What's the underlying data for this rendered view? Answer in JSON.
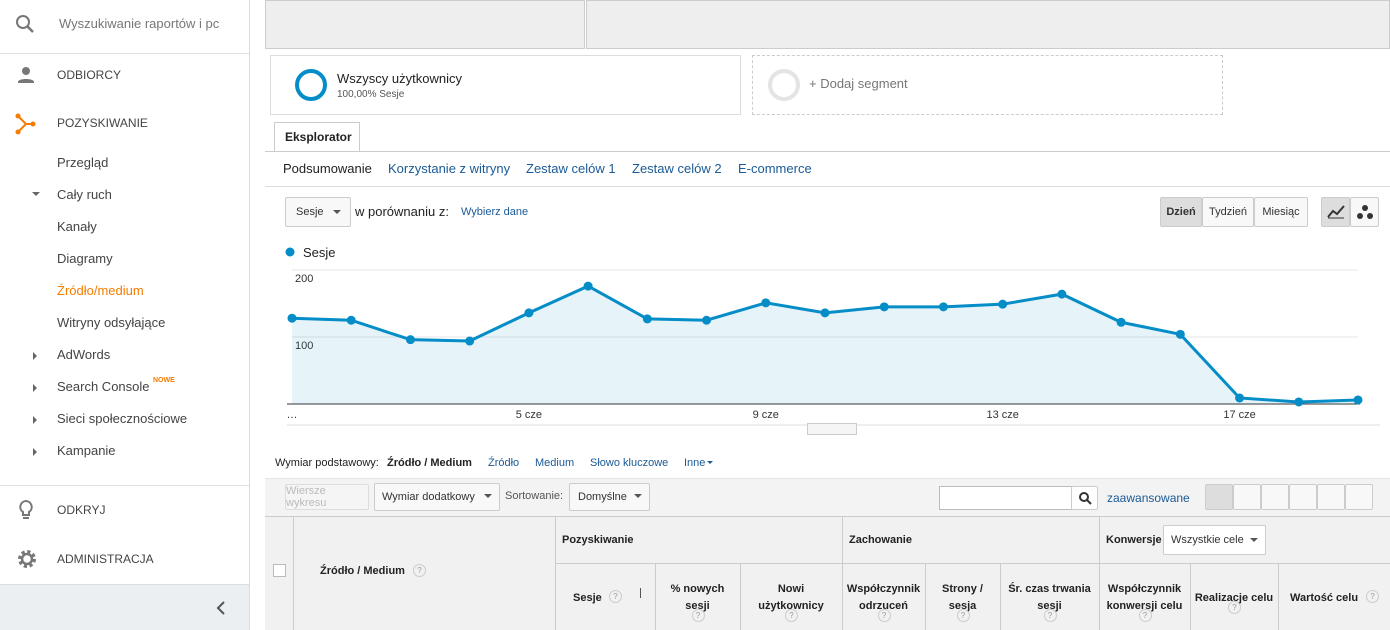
{
  "sidebar": {
    "search": "Wyszukiwanie raportów i pc",
    "audience": "ODBIORCY",
    "acquisition": "POZYSKIWANIE",
    "items": [
      "Przegląd",
      "Cały ruch",
      "Kanały",
      "Diagramy",
      "Źródło/medium",
      "Witryny odsyłające",
      "AdWords",
      "Search Console",
      "Sieci społecznościowe",
      "Kampanie"
    ],
    "badge": "NOWE",
    "discover": "ODKRYJ",
    "admin": "ADMINISTRACJA"
  },
  "segments": {
    "name": "Wszyscy użytkownicy",
    "detail": "100,00% Sesje",
    "add": "+ Dodaj segment"
  },
  "tab": "Eksplorator",
  "subtabs": [
    "Podsumowanie",
    "Korzystanie z witryny",
    "Zestaw celów 1",
    "Zestaw celów 2",
    "E-commerce"
  ],
  "controls": {
    "metric": "Sesje",
    "compare": "w porównaniu z:",
    "choose": "Wybierz dane",
    "periods": [
      "Dzień",
      "Tydzień",
      "Miesiąc"
    ]
  },
  "chart_data": {
    "type": "line",
    "series": [
      {
        "name": "Sesje",
        "color": "#058dc7",
        "values": [
          128,
          125,
          96,
          94,
          136,
          176,
          127,
          125,
          151,
          136,
          145,
          145,
          149,
          164,
          122,
          104,
          9,
          3,
          6
        ]
      }
    ],
    "categories": [
      "…",
      null,
      null,
      null,
      "5 cze",
      null,
      null,
      null,
      "9 cze",
      null,
      null,
      null,
      "13 cze",
      null,
      null,
      null,
      "17 cze",
      null,
      null
    ],
    "ylim": [
      0,
      200
    ],
    "yticks": [
      100,
      200
    ],
    "grid": true,
    "area": true
  },
  "dimension": {
    "label": "Wymiar podstawowy:",
    "options": [
      "Źródło / Medium",
      "Źródło",
      "Medium",
      "Słowo kluczowe",
      "Inne"
    ]
  },
  "toolbar": {
    "plot_rows": "Wiersze wykresu",
    "secondary": "Wymiar dodatkowy",
    "sort_label": "Sortowanie:",
    "sort": "Domyślne",
    "advanced": "zaawansowane"
  },
  "table": {
    "dimension": "Źródło / Medium",
    "help": "?",
    "groups": [
      "Pozyskiwanie",
      "Zachowanie",
      "Konwersje"
    ],
    "goal_select": "Wszystkie cele",
    "columns": [
      "Sesje",
      "% nowych sesji",
      "Nowi użytkownicy",
      "Współczynnik odrzuceń",
      "Strony / sesja",
      "Śr. czas trwania sesji",
      "Współczynnik konwersji celu",
      "Realizacje celu",
      "Wartość celu"
    ]
  }
}
